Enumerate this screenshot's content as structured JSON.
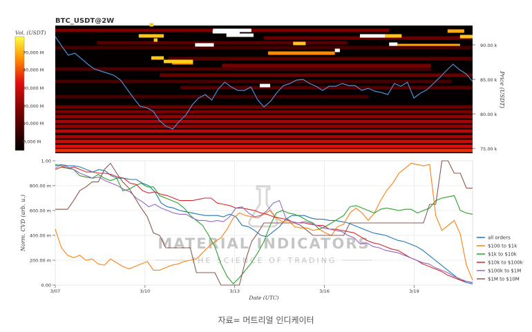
{
  "caption": "자료= 머트리얼 인디케이터",
  "watermark": {
    "line1": "MATERIAL INDICATORS",
    "line2": "THE SCIENCE OF TRADING"
  },
  "chart_data": [
    {
      "type": "heatmap",
      "title": "BTC_USDT@2W",
      "colorbar_label": "Vol. (USDT)",
      "colorbar_ticks": [
        "70,000 M",
        "40,000 M",
        "30,000 M",
        "20,000 M",
        "10,000 M",
        "0,000 M"
      ],
      "colorbar_tick_positions": [
        0.86,
        0.71,
        0.55,
        0.39,
        0.24,
        0.08
      ],
      "ylabel": "Price (USDT)",
      "yticks": [
        "90.00 k",
        "85.00 k",
        "80.00 k",
        "75.00 k"
      ],
      "ytick_values": [
        90000,
        85000,
        80000,
        75000
      ],
      "ylim": [
        74300,
        92800
      ],
      "price_series": [
        91200,
        89800,
        88500,
        88800,
        88000,
        87200,
        86500,
        86200,
        85900,
        85600,
        84900,
        83600,
        82300,
        81100,
        80900,
        80400,
        79000,
        78200,
        77800,
        78900,
        79800,
        81300,
        82300,
        82800,
        82000,
        83600,
        84600,
        83900,
        83400,
        83400,
        83900,
        82100,
        81000,
        81800,
        83100,
        84100,
        84400,
        84900,
        85000,
        84400,
        84000,
        83400,
        84000,
        84000,
        84400,
        84100,
        84100,
        83400,
        83700,
        83300,
        83100,
        82800,
        84400,
        84000,
        84600,
        82300,
        83000,
        83500,
        84400,
        85300,
        86300,
        87200,
        86400,
        85800,
        84700
      ],
      "bands": [
        {
          "price": 92100,
          "start": 0.0,
          "end": 0.8,
          "level": 0.35
        },
        {
          "price": 91300,
          "start": 0.2,
          "end": 0.26,
          "level": 0.9
        },
        {
          "price": 91000,
          "start": 0.5,
          "end": 1.0,
          "level": 0.3
        },
        {
          "price": 90300,
          "start": 0.1,
          "end": 0.7,
          "level": 0.25
        },
        {
          "price": 89900,
          "start": 0.82,
          "end": 0.97,
          "level": 0.85
        },
        {
          "price": 89600,
          "start": 0.0,
          "end": 1.0,
          "level": 0.2
        },
        {
          "price": 88800,
          "start": 0.51,
          "end": 0.67,
          "level": 0.8
        },
        {
          "price": 88000,
          "start": 0.27,
          "end": 1.0,
          "level": 0.25
        },
        {
          "price": 87400,
          "start": 0.28,
          "end": 0.33,
          "level": 0.8
        },
        {
          "price": 87000,
          "start": 0.4,
          "end": 0.9,
          "level": 0.35
        },
        {
          "price": 86500,
          "start": 0.0,
          "end": 0.9,
          "level": 0.22
        },
        {
          "price": 85600,
          "start": 0.25,
          "end": 1.0,
          "level": 0.3
        },
        {
          "price": 84700,
          "start": 0.0,
          "end": 0.95,
          "level": 0.2
        },
        {
          "price": 83800,
          "start": 0.3,
          "end": 1.0,
          "level": 0.25
        },
        {
          "price": 82500,
          "start": 0.0,
          "end": 0.75,
          "level": 0.2
        },
        {
          "price": 81000,
          "start": 0.0,
          "end": 1.0,
          "level": 0.3
        },
        {
          "price": 80300,
          "start": 0.0,
          "end": 1.0,
          "level": 0.35
        },
        {
          "price": 79600,
          "start": 0.0,
          "end": 1.0,
          "level": 0.4
        },
        {
          "price": 78900,
          "start": 0.0,
          "end": 1.0,
          "level": 0.45
        },
        {
          "price": 78200,
          "start": 0.0,
          "end": 1.0,
          "level": 0.4
        },
        {
          "price": 77500,
          "start": 0.0,
          "end": 1.0,
          "level": 0.5
        },
        {
          "price": 76700,
          "start": 0.0,
          "end": 1.0,
          "level": 0.45
        },
        {
          "price": 76000,
          "start": 0.0,
          "end": 1.0,
          "level": 0.55
        },
        {
          "price": 75300,
          "start": 0.0,
          "end": 1.0,
          "level": 0.6
        },
        {
          "price": 74700,
          "start": 0.0,
          "end": 1.0,
          "level": 0.65
        }
      ],
      "hot_blocks": [
        {
          "price": 91900,
          "start": 0.377,
          "end": 0.442,
          "level": 1.0
        },
        {
          "price": 92100,
          "start": 0.378,
          "end": 0.47,
          "level": 1.0
        },
        {
          "price": 91400,
          "start": 0.41,
          "end": 0.475,
          "level": 1.0
        },
        {
          "price": 91300,
          "start": 0.73,
          "end": 0.8,
          "level": 1.0
        },
        {
          "price": 91300,
          "start": 0.79,
          "end": 0.83,
          "level": 0.9
        },
        {
          "price": 90000,
          "start": 0.335,
          "end": 0.38,
          "level": 1.0
        },
        {
          "price": 90100,
          "start": 0.8,
          "end": 0.82,
          "level": 1.0
        },
        {
          "price": 90200,
          "start": 0.57,
          "end": 0.6,
          "level": 0.9
        },
        {
          "price": 89200,
          "start": 0.67,
          "end": 0.682,
          "level": 1.0
        },
        {
          "price": 88100,
          "start": 0.23,
          "end": 0.26,
          "level": 0.9
        },
        {
          "price": 87600,
          "start": 0.26,
          "end": 0.33,
          "level": 0.95
        },
        {
          "price": 84100,
          "start": 0.49,
          "end": 0.515,
          "level": 1.0
        },
        {
          "price": 92900,
          "start": 0.226,
          "end": 0.235,
          "level": 0.9
        },
        {
          "price": 90700,
          "start": 0.236,
          "end": 0.245,
          "level": 0.9
        },
        {
          "price": 92000,
          "start": 0.94,
          "end": 0.98,
          "level": 0.85
        },
        {
          "price": 91200,
          "start": 0.97,
          "end": 1.0,
          "level": 0.9
        }
      ]
    },
    {
      "type": "line",
      "xlabel": "Date (UTC)",
      "ylabel": "Norm. CVD (arb. u.)",
      "ylim": [
        0,
        1
      ],
      "yticks": [
        "1.00",
        "800.00 m",
        "600.00 m",
        "400.00 m",
        "200.00 m",
        "0.00"
      ],
      "ytick_values": [
        1.0,
        0.8,
        0.6,
        0.4,
        0.2,
        0.0
      ],
      "xticks": [
        "3/07",
        "3/10",
        "3/13",
        "3/16",
        "3/19"
      ],
      "xtick_positions": [
        0.0,
        0.215,
        0.43,
        0.645,
        0.86
      ],
      "series": [
        {
          "name": "all orders",
          "color": "#1f77b4",
          "values": [
            0.96,
            0.97,
            0.96,
            0.96,
            0.95,
            0.93,
            0.91,
            0.93,
            0.92,
            0.88,
            0.86,
            0.86,
            0.85,
            0.85,
            0.82,
            0.8,
            0.75,
            0.66,
            0.63,
            0.62,
            0.6,
            0.59,
            0.58,
            0.57,
            0.56,
            0.56,
            0.56,
            0.55,
            0.57,
            0.55,
            0.48,
            0.47,
            0.44,
            0.4,
            0.39,
            0.43,
            0.47,
            0.53,
            0.56,
            0.56,
            0.56,
            0.54,
            0.53,
            0.53,
            0.52,
            0.52,
            0.51,
            0.5,
            0.48,
            0.46,
            0.44,
            0.42,
            0.41,
            0.4,
            0.38,
            0.36,
            0.35,
            0.33,
            0.31,
            0.28,
            0.24,
            0.2,
            0.16,
            0.12,
            0.08,
            0.04,
            0.02,
            0.01
          ]
        },
        {
          "name": "$100 to $1k",
          "color": "#ff7f0e",
          "values": [
            0.45,
            0.3,
            0.24,
            0.22,
            0.24,
            0.2,
            0.21,
            0.17,
            0.16,
            0.21,
            0.18,
            0.15,
            0.13,
            0.15,
            0.17,
            0.19,
            0.12,
            0.12,
            0.14,
            0.16,
            0.17,
            0.19,
            0.2,
            0.21,
            0.26,
            0.31,
            0.35,
            0.38,
            0.45,
            0.54,
            0.58,
            0.56,
            0.55,
            0.54,
            0.57,
            0.6,
            0.54,
            0.51,
            0.52,
            0.47,
            0.46,
            0.46,
            0.44,
            0.45,
            0.42,
            0.4,
            0.47,
            0.49,
            0.58,
            0.62,
            0.58,
            0.52,
            0.58,
            0.68,
            0.76,
            0.82,
            0.9,
            0.94,
            0.98,
            0.97,
            0.96,
            0.97,
            0.56,
            0.44,
            0.48,
            0.52,
            0.41,
            0.16,
            0.04
          ]
        },
        {
          "name": "$1k to $10k",
          "color": "#2ca02c",
          "values": [
            0.97,
            0.96,
            0.94,
            0.93,
            0.88,
            0.87,
            0.86,
            0.89,
            0.86,
            0.84,
            0.86,
            0.76,
            0.77,
            0.8,
            0.82,
            0.79,
            0.79,
            0.72,
            0.7,
            0.68,
            0.66,
            0.62,
            0.56,
            0.52,
            0.48,
            0.4,
            0.31,
            0.17,
            0.07,
            0.01,
            0.06,
            0.12,
            0.18,
            0.26,
            0.35,
            0.48,
            0.58,
            0.6,
            0.58,
            0.57,
            0.55,
            0.52,
            0.5,
            0.45,
            0.47,
            0.5,
            0.53,
            0.56,
            0.63,
            0.64,
            0.62,
            0.6,
            0.58,
            0.61,
            0.62,
            0.61,
            0.6,
            0.61,
            0.61,
            0.58,
            0.6,
            0.62,
            0.68,
            0.7,
            0.71,
            0.72,
            0.6,
            0.58,
            0.57
          ]
        },
        {
          "name": "$10k to $100k",
          "color": "#d62728",
          "values": [
            0.93,
            0.95,
            0.94,
            0.95,
            0.93,
            0.91,
            0.91,
            0.9,
            0.9,
            0.89,
            0.87,
            0.86,
            0.82,
            0.81,
            0.76,
            0.74,
            0.75,
            0.73,
            0.72,
            0.7,
            0.68,
            0.68,
            0.68,
            0.69,
            0.7,
            0.7,
            0.66,
            0.65,
            0.64,
            0.62,
            0.62,
            0.61,
            0.6,
            0.58,
            0.57,
            0.55,
            0.54,
            0.53,
            0.51,
            0.5,
            0.5,
            0.49,
            0.48,
            0.48,
            0.45,
            0.45,
            0.44,
            0.43,
            0.42,
            0.39,
            0.36,
            0.34,
            0.33,
            0.31,
            0.29,
            0.28,
            0.25,
            0.22,
            0.2,
            0.17,
            0.15,
            0.13,
            0.11,
            0.08,
            0.06,
            0.04,
            0.03,
            0.02
          ]
        },
        {
          "name": "$100k to $1M",
          "color": "#9467bd",
          "values": [
            0.94,
            0.97,
            0.95,
            0.93,
            0.9,
            0.88,
            0.86,
            0.87,
            0.84,
            0.82,
            0.8,
            0.77,
            0.75,
            0.7,
            0.67,
            0.63,
            0.65,
            0.62,
            0.6,
            0.58,
            0.57,
            0.57,
            0.54,
            0.52,
            0.52,
            0.51,
            0.52,
            0.51,
            0.55,
            0.62,
            0.63,
            0.58,
            0.55,
            0.56,
            0.6,
            0.66,
            0.68,
            0.54,
            0.51,
            0.5,
            0.51,
            0.5,
            0.48,
            0.46,
            0.45,
            0.44,
            0.43,
            0.4,
            0.38,
            0.33,
            0.34,
            0.31,
            0.3,
            0.28,
            0.27,
            0.26,
            0.24,
            0.22,
            0.2,
            0.18,
            0.17,
            0.14,
            0.12,
            0.1,
            0.07,
            0.05,
            0.03,
            0.02
          ]
        },
        {
          "name": "$1M to $10M",
          "color": "#8c564b",
          "values": [
            0.61,
            0.61,
            0.61,
            0.68,
            0.76,
            0.79,
            0.83,
            0.83,
            0.93,
            0.98,
            0.9,
            0.83,
            0.78,
            0.7,
            0.62,
            0.55,
            0.42,
            0.4,
            0.3,
            0.3,
            0.3,
            0.3,
            0.3,
            0.1,
            0.1,
            0.1,
            0.1,
            0.0,
            0.0,
            0.0,
            0.0,
            0.2,
            0.35,
            0.42,
            0.5,
            0.5,
            0.5,
            0.5,
            0.5,
            0.5,
            0.48,
            0.44,
            0.4,
            0.4,
            0.4,
            0.4,
            0.4,
            0.4,
            0.5,
            0.5,
            0.5,
            0.5,
            0.5,
            0.5,
            0.5,
            0.5,
            0.5,
            0.5,
            0.5,
            0.5,
            0.5,
            0.65,
            0.65,
            1.0,
            1.0,
            0.9,
            0.9,
            0.78,
            0.78
          ]
        }
      ]
    }
  ]
}
